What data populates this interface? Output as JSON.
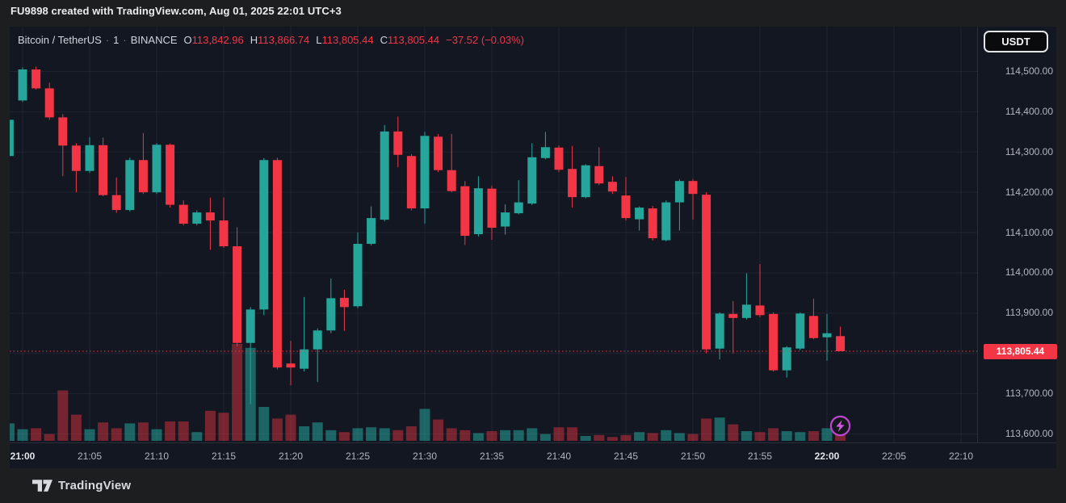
{
  "title_bar": {
    "text": "FU9898 created with TradingView.com, Aug 01, 2025 22:01 UTC+3"
  },
  "toolbar": {
    "currency_button": "USDT"
  },
  "legend": {
    "symbol": "Bitcoin / TetherUS",
    "interval": "1",
    "exchange": "BINANCE",
    "separator": "·",
    "ohlc": [
      {
        "label": "O",
        "value": "113,842.96"
      },
      {
        "label": "H",
        "value": "113,866.74"
      },
      {
        "label": "L",
        "value": "113,805.44"
      },
      {
        "label": "C",
        "value": "113,805.44"
      }
    ],
    "change": "−37.52 (−0.03%)"
  },
  "price_scale": {
    "labels": [
      "114,500.00",
      "114,400.00",
      "114,300.00",
      "114,200.00",
      "114,100.00",
      "114,000.00",
      "113,900.00",
      "113,700.00",
      "113,600.00"
    ],
    "current_price_label": "113,805.44"
  },
  "time_scale": {
    "labels": [
      {
        "text": "21:00",
        "emphasis": true
      },
      {
        "text": "21:05"
      },
      {
        "text": "21:10"
      },
      {
        "text": "21:15"
      },
      {
        "text": "21:20"
      },
      {
        "text": "21:25"
      },
      {
        "text": "21:30"
      },
      {
        "text": "21:35"
      },
      {
        "text": "21:40"
      },
      {
        "text": "21:45"
      },
      {
        "text": "21:50"
      },
      {
        "text": "21:55"
      },
      {
        "text": "22:00",
        "emphasis": true
      },
      {
        "text": "22:05"
      },
      {
        "text": "22:10"
      }
    ]
  },
  "footer": {
    "logo_text": "TradingView"
  },
  "colors": {
    "candle_up": "#26a69a",
    "candle_down": "#f23645",
    "volume_up": "rgba(38,166,154,0.55)",
    "volume_down": "rgba(242,54,69,0.45)",
    "price_line": "#f23645",
    "grid": "rgba(150,160,190,0.10)",
    "axis_text": "#b2b5be",
    "plot_background": "#131722",
    "lightning_purple": "#bb46cf"
  },
  "chart_data": {
    "type": "candlestick",
    "pair": "Bitcoin / TetherUS",
    "exchange": "BINANCE",
    "interval_minutes": 1,
    "current_price": 113805.44,
    "y_axis": {
      "min": 113600,
      "max": 114500,
      "step": 100,
      "visible_range": [
        113580,
        114610
      ]
    },
    "x_axis": {
      "start": "21:00",
      "end": "22:10",
      "grid_step_minutes": 5
    },
    "volume_units": "relative_height_0_to_1",
    "columns": [
      "time",
      "open",
      "high",
      "low",
      "close",
      "volume_rel"
    ],
    "candles": [
      [
        "20:59",
        114290,
        114382,
        114288,
        114380,
        0.18
      ],
      [
        "21:00",
        114428,
        114510,
        114424,
        114505,
        0.12
      ],
      [
        "21:01",
        114505,
        114512,
        114455,
        114458,
        0.13
      ],
      [
        "21:02",
        114458,
        114472,
        114380,
        114386,
        0.07
      ],
      [
        "21:03",
        114386,
        114394,
        114240,
        114316,
        0.52
      ],
      [
        "21:04",
        114316,
        114322,
        114200,
        114253,
        0.27
      ],
      [
        "21:05",
        114253,
        114337,
        114248,
        114317,
        0.12
      ],
      [
        "21:06",
        114317,
        114336,
        114190,
        114193,
        0.19
      ],
      [
        "21:07",
        114193,
        114237,
        114149,
        114156,
        0.13
      ],
      [
        "21:08",
        114156,
        114286,
        114152,
        114280,
        0.18
      ],
      [
        "21:09",
        114280,
        114347,
        114196,
        114200,
        0.19
      ],
      [
        "21:10",
        114200,
        114322,
        114196,
        114318,
        0.12
      ],
      [
        "21:11",
        114318,
        114321,
        114162,
        114169,
        0.2
      ],
      [
        "21:12",
        114169,
        114180,
        114118,
        114122,
        0.2
      ],
      [
        "21:13",
        114122,
        114155,
        114118,
        114150,
        0.09
      ],
      [
        "21:14",
        114150,
        114187,
        114057,
        114130,
        0.31
      ],
      [
        "21:15",
        114130,
        114187,
        114062,
        114066,
        0.29
      ],
      [
        "21:16",
        114066,
        114113,
        113818,
        113826,
        1.0
      ],
      [
        "21:17",
        113826,
        113915,
        113674,
        113909,
        0.96
      ],
      [
        "21:18",
        113909,
        114285,
        113895,
        114280,
        0.35
      ],
      [
        "21:19",
        114280,
        114286,
        113760,
        113765,
        0.23
      ],
      [
        "21:20",
        113775,
        113831,
        113721,
        113765,
        0.27
      ],
      [
        "21:21",
        113762,
        113940,
        113755,
        113810,
        0.15
      ],
      [
        "21:22",
        113810,
        113862,
        113729,
        113857,
        0.19
      ],
      [
        "21:23",
        113857,
        113986,
        113850,
        113937,
        0.11
      ],
      [
        "21:24",
        113938,
        113958,
        113856,
        113915,
        0.09
      ],
      [
        "21:25",
        113917,
        114100,
        113912,
        114072,
        0.13
      ],
      [
        "21:26",
        114072,
        114165,
        114068,
        114136,
        0.14
      ],
      [
        "21:27",
        114132,
        114367,
        114128,
        114351,
        0.13
      ],
      [
        "21:28",
        114351,
        114388,
        114262,
        114293,
        0.11
      ],
      [
        "21:29",
        114290,
        114295,
        114155,
        114160,
        0.15
      ],
      [
        "21:30",
        114160,
        114350,
        114122,
        114340,
        0.33
      ],
      [
        "21:31",
        114338,
        114345,
        114250,
        114255,
        0.22
      ],
      [
        "21:32",
        114255,
        114345,
        114200,
        114203,
        0.13
      ],
      [
        "21:33",
        114215,
        114228,
        114069,
        114092,
        0.11
      ],
      [
        "21:34",
        114096,
        114240,
        114090,
        114210,
        0.08
      ],
      [
        "21:35",
        114209,
        114216,
        114082,
        114112,
        0.1
      ],
      [
        "21:36",
        114115,
        114170,
        114095,
        114150,
        0.11
      ],
      [
        "21:37",
        114148,
        114230,
        114145,
        114175,
        0.11
      ],
      [
        "21:38",
        114172,
        114322,
        114168,
        114287,
        0.13
      ],
      [
        "21:39",
        114285,
        114350,
        114282,
        114312,
        0.07
      ],
      [
        "21:40",
        114311,
        114316,
        114250,
        114256,
        0.14
      ],
      [
        "21:41",
        114258,
        114315,
        114162,
        114188,
        0.14
      ],
      [
        "21:42",
        114188,
        114270,
        114185,
        114267,
        0.05
      ],
      [
        "21:43",
        114265,
        114312,
        114218,
        114222,
        0.06
      ],
      [
        "21:44",
        114226,
        114240,
        114196,
        114202,
        0.04
      ],
      [
        "21:45",
        114192,
        114238,
        114130,
        114136,
        0.06
      ],
      [
        "21:46",
        114133,
        114165,
        114105,
        114162,
        0.09
      ],
      [
        "21:47",
        114160,
        114166,
        114080,
        114086,
        0.08
      ],
      [
        "21:48",
        114081,
        114180,
        114078,
        114175,
        0.11
      ],
      [
        "21:49",
        114175,
        114232,
        114105,
        114228,
        0.08
      ],
      [
        "21:50",
        114228,
        114233,
        114132,
        114196,
        0.07
      ],
      [
        "21:51",
        114194,
        114200,
        113800,
        113810,
        0.23
      ],
      [
        "21:52",
        113812,
        113902,
        113785,
        113899,
        0.24
      ],
      [
        "21:53",
        113898,
        113930,
        113800,
        113888,
        0.17
      ],
      [
        "21:54",
        113888,
        113999,
        113884,
        113921,
        0.1
      ],
      [
        "21:55",
        113919,
        114022,
        113890,
        113895,
        0.09
      ],
      [
        "21:56",
        113898,
        113902,
        113755,
        113758,
        0.13
      ],
      [
        "21:57",
        113758,
        113818,
        113740,
        113815,
        0.1
      ],
      [
        "21:58",
        113812,
        113902,
        113808,
        113899,
        0.09
      ],
      [
        "21:59",
        113893,
        113936,
        113835,
        113838,
        0.1
      ],
      [
        "22:00",
        113840,
        113898,
        113782,
        113850,
        0.13
      ],
      [
        "22:01",
        113842.96,
        113866.74,
        113805.44,
        113805.44,
        0.1
      ]
    ]
  }
}
